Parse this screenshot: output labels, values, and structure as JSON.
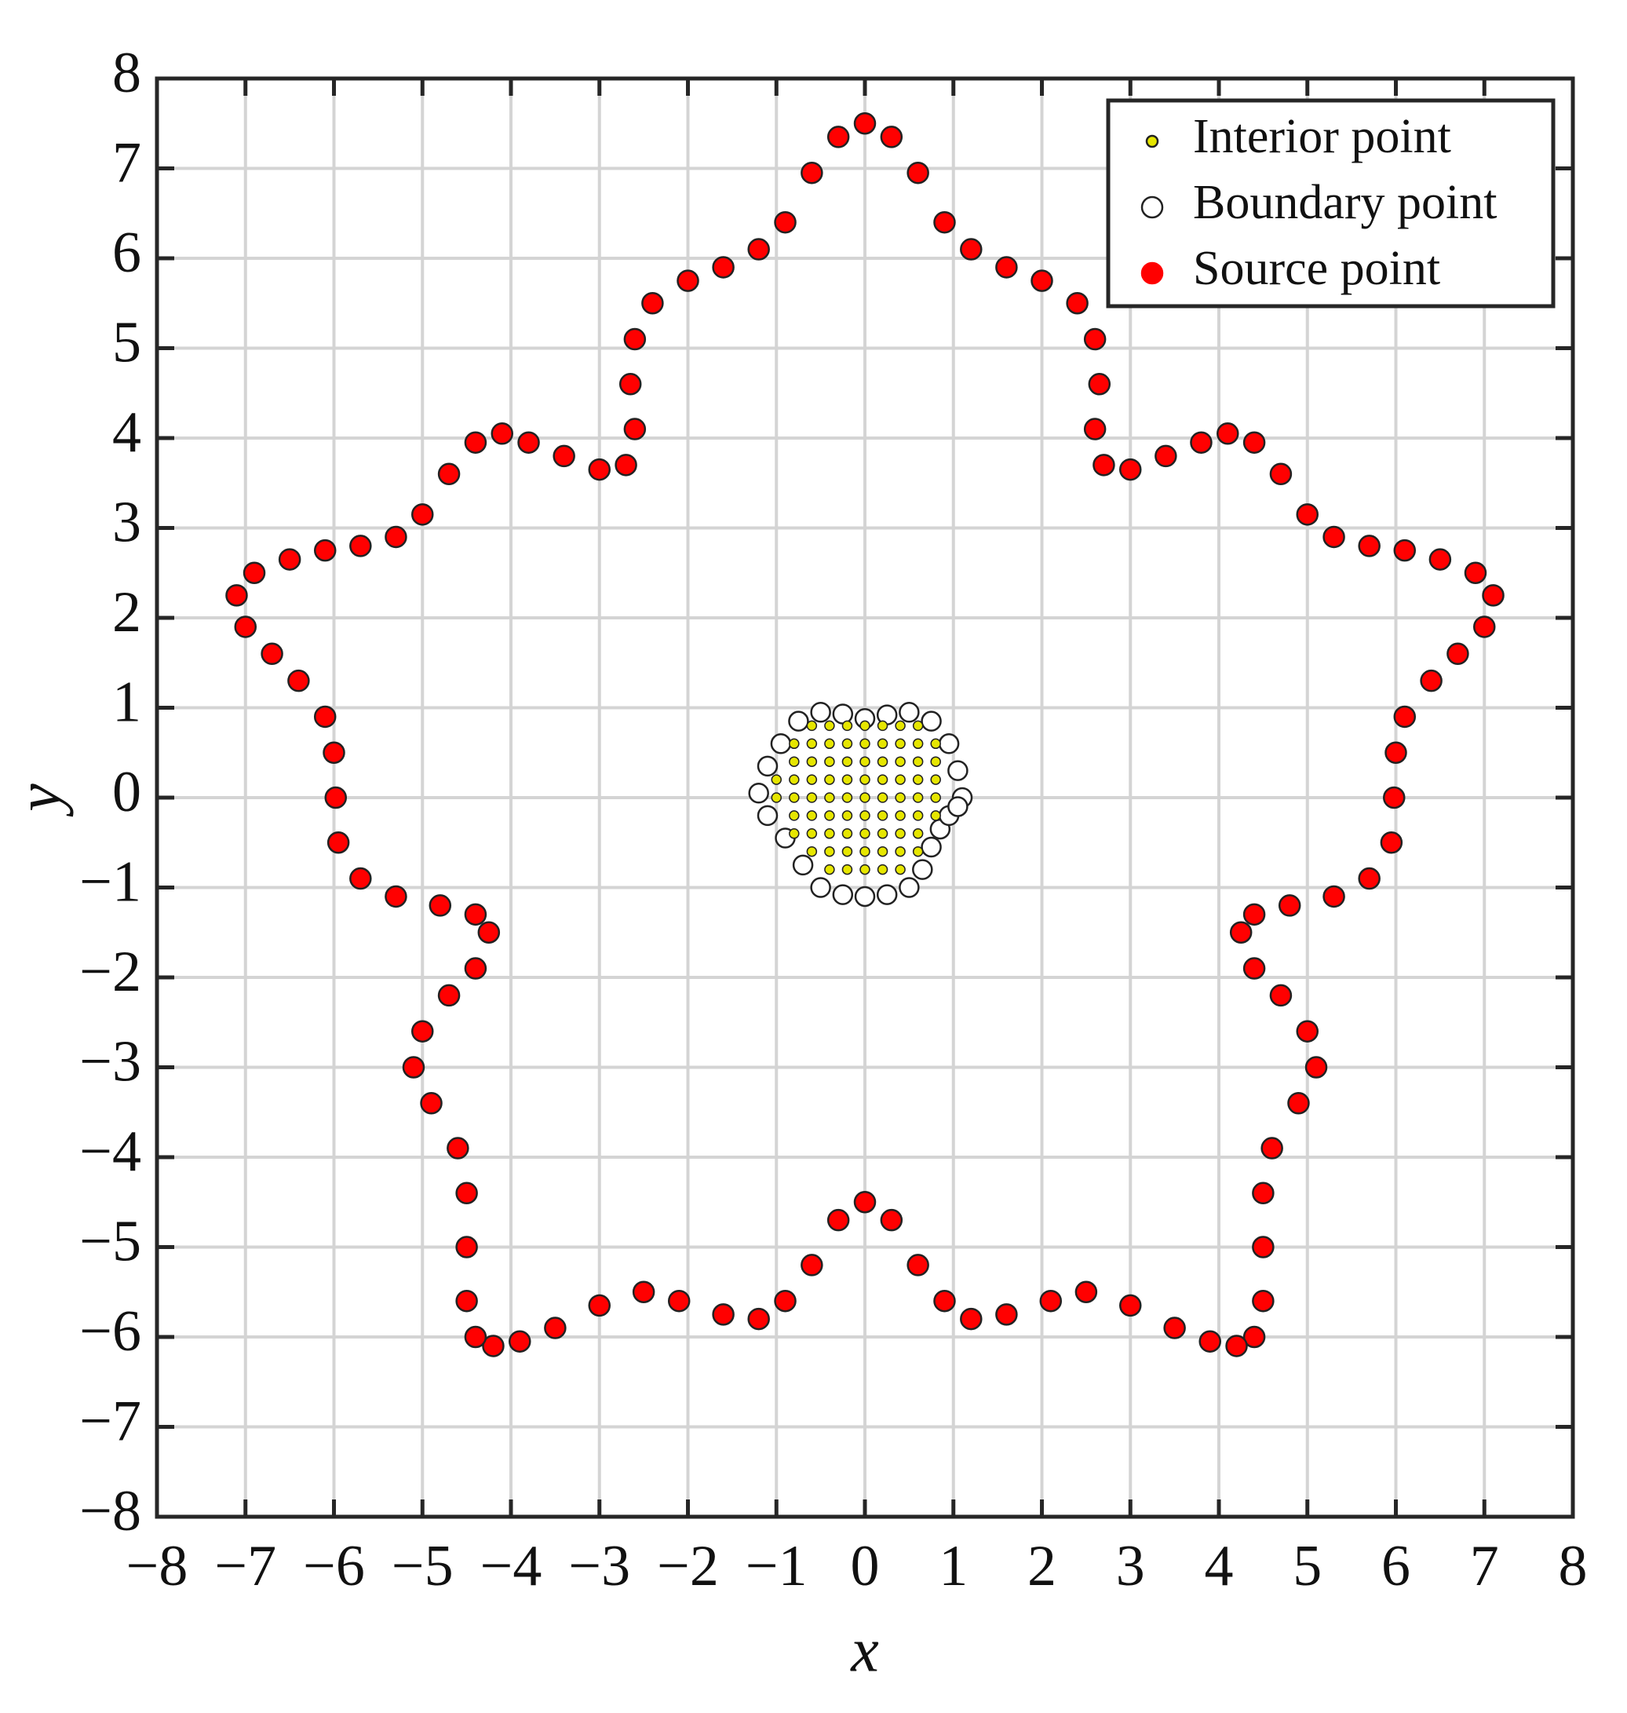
{
  "chart_data": {
    "type": "scatter",
    "x_label": "x",
    "y_label": "y",
    "xlim": [
      -8,
      8
    ],
    "ylim": [
      -8,
      8
    ],
    "xticks": [
      {
        "value": -8,
        "label": "−8"
      },
      {
        "value": -7,
        "label": "−7"
      },
      {
        "value": -6,
        "label": "−6"
      },
      {
        "value": -5,
        "label": "−5"
      },
      {
        "value": -4,
        "label": "−4"
      },
      {
        "value": -3,
        "label": "−3"
      },
      {
        "value": -2,
        "label": "−2"
      },
      {
        "value": -1,
        "label": "−1"
      },
      0,
      1,
      2,
      3,
      4,
      5,
      6,
      7,
      8
    ],
    "yticks": [
      {
        "value": -8,
        "label": "−8"
      },
      {
        "value": -7,
        "label": "−7"
      },
      {
        "value": -6,
        "label": "−6"
      },
      {
        "value": -5,
        "label": "−5"
      },
      {
        "value": -4,
        "label": "−4"
      },
      {
        "value": -3,
        "label": "−3"
      },
      {
        "value": -2,
        "label": "−2"
      },
      {
        "value": -1,
        "label": "−1"
      },
      0,
      1,
      2,
      3,
      4,
      5,
      6,
      7,
      8
    ],
    "grid": true,
    "legend": "upper right",
    "series": [
      {
        "name": "Interior point",
        "color": "#e6e600",
        "x": [
          -0.6,
          -0.4,
          -0.2,
          0,
          0.2,
          0.4,
          0.6,
          -0.8,
          -0.6,
          -0.4,
          -0.2,
          0,
          0.2,
          0.4,
          0.6,
          0.8,
          -0.8,
          -0.6,
          -0.4,
          -0.2,
          0,
          0.2,
          0.4,
          0.6,
          0.8,
          -1,
          -0.8,
          -0.6,
          -0.4,
          -0.2,
          0,
          0.2,
          0.4,
          0.6,
          0.8,
          -1,
          -0.8,
          -0.6,
          -0.4,
          -0.2,
          0,
          0.2,
          0.4,
          0.6,
          0.8,
          -0.8,
          -0.6,
          -0.4,
          -0.2,
          0,
          0.2,
          0.4,
          0.6,
          0.8,
          -0.8,
          -0.6,
          -0.4,
          -0.2,
          0,
          0.2,
          0.4,
          0.6,
          -0.6,
          -0.4,
          -0.2,
          0,
          0.2,
          0.4,
          0.6,
          -0.4,
          -0.2,
          0,
          0.2,
          0.4
        ],
        "y": [
          0.8,
          0.8,
          0.8,
          0.8,
          0.8,
          0.8,
          0.8,
          0.6,
          0.6,
          0.6,
          0.6,
          0.6,
          0.6,
          0.6,
          0.6,
          0.6,
          0.4,
          0.4,
          0.4,
          0.4,
          0.4,
          0.4,
          0.4,
          0.4,
          0.4,
          0.2,
          0.2,
          0.2,
          0.2,
          0.2,
          0.2,
          0.2,
          0.2,
          0.2,
          0.2,
          0,
          0,
          0,
          0,
          0,
          0,
          0,
          0,
          0,
          0,
          -0.2,
          -0.2,
          -0.2,
          -0.2,
          -0.2,
          -0.2,
          -0.2,
          -0.2,
          -0.2,
          -0.4,
          -0.4,
          -0.4,
          -0.4,
          -0.4,
          -0.4,
          -0.4,
          -0.4,
          -0.6,
          -0.6,
          -0.6,
          -0.6,
          -0.6,
          -0.6,
          -0.6,
          -0.8,
          -0.8,
          -0.8,
          -0.8,
          -0.8
        ]
      },
      {
        "name": "Boundary point",
        "color": "#ffffff",
        "x": [
          1.1,
          1.05,
          0.95,
          0.75,
          0.5,
          0.25,
          0,
          -0.25,
          -0.5,
          -0.75,
          -0.95,
          -1.1,
          -1.2,
          -1.1,
          -0.9,
          -0.7,
          -0.5,
          -0.25,
          0,
          0.25,
          0.5,
          0.65,
          0.75,
          0.85,
          0.95,
          1.05
        ],
        "y": [
          0,
          0.3,
          0.6,
          0.85,
          0.95,
          0.92,
          0.88,
          0.93,
          0.95,
          0.85,
          0.6,
          0.35,
          0.05,
          -0.2,
          -0.45,
          -0.75,
          -1.0,
          -1.08,
          -1.1,
          -1.08,
          -1.0,
          -0.8,
          -0.55,
          -0.35,
          -0.2,
          -0.1
        ]
      },
      {
        "name": "Source point",
        "color": "#ff0000",
        "x": [
          0,
          0.3,
          0.6,
          0.9,
          1.2,
          1.6,
          2.0,
          2.4,
          2.6,
          2.65,
          2.6,
          2.7,
          3.0,
          3.4,
          3.8,
          4.1,
          4.4,
          4.7,
          5.0,
          5.3,
          5.7,
          6.1,
          6.5,
          6.9,
          7.1,
          7.0,
          6.7,
          6.4,
          6.1,
          6.0,
          5.98,
          5.95,
          5.7,
          5.3,
          4.8,
          4.4,
          4.25,
          4.4,
          4.7,
          5.0,
          5.1,
          4.9,
          4.6,
          4.5,
          4.5,
          4.5,
          4.4,
          4.2,
          3.9,
          3.5,
          3.0,
          2.5,
          2.1,
          1.6,
          1.2,
          0.9,
          0.6,
          0.3,
          0,
          -0.3,
          -0.6,
          -0.9,
          -1.2,
          -1.6,
          -2.1,
          -2.5,
          -3.0,
          -3.5,
          -3.9,
          -4.2,
          -4.4,
          -4.5,
          -4.5,
          -4.5,
          -4.6,
          -4.9,
          -5.1,
          -5.0,
          -4.7,
          -4.4,
          -4.25,
          -4.4,
          -4.8,
          -5.3,
          -5.7,
          -5.95,
          -5.98,
          -6.0,
          -6.1,
          -6.4,
          -6.7,
          -7.0,
          -7.1,
          -6.9,
          -6.5,
          -6.1,
          -5.7,
          -5.3,
          -5.0,
          -4.7,
          -4.4,
          -4.1,
          -3.8,
          -3.4,
          -3.0,
          -2.7,
          -2.6,
          -2.65,
          -2.6,
          -2.4,
          -2.0,
          -1.6,
          -1.2,
          -0.9,
          -0.6,
          -0.3
        ],
        "y": [
          7.5,
          7.35,
          6.95,
          6.4,
          6.1,
          5.9,
          5.75,
          5.5,
          5.1,
          4.6,
          4.1,
          3.7,
          3.65,
          3.8,
          3.95,
          4.05,
          3.95,
          3.6,
          3.15,
          2.9,
          2.8,
          2.75,
          2.65,
          2.5,
          2.25,
          1.9,
          1.6,
          1.3,
          0.9,
          0.5,
          0,
          -0.5,
          -0.9,
          -1.1,
          -1.2,
          -1.3,
          -1.5,
          -1.9,
          -2.2,
          -2.6,
          -3.0,
          -3.4,
          -3.9,
          -4.4,
          -5.0,
          -5.6,
          -6.0,
          -6.1,
          -6.05,
          -5.9,
          -5.65,
          -5.5,
          -5.6,
          -5.75,
          -5.8,
          -5.6,
          -5.2,
          -4.7,
          -4.5,
          -4.7,
          -5.2,
          -5.6,
          -5.8,
          -5.75,
          -5.6,
          -5.5,
          -5.65,
          -5.9,
          -6.05,
          -6.1,
          -6.0,
          -5.6,
          -5.0,
          -4.4,
          -3.9,
          -3.4,
          -3.0,
          -2.6,
          -2.2,
          -1.9,
          -1.5,
          -1.3,
          -1.2,
          -1.1,
          -0.9,
          -0.5,
          0,
          0.5,
          0.9,
          1.3,
          1.6,
          1.9,
          2.25,
          2.5,
          2.65,
          2.75,
          2.8,
          2.9,
          3.15,
          3.6,
          3.95,
          4.05,
          3.95,
          3.8,
          3.65,
          3.7,
          4.1,
          4.6,
          5.1,
          5.5,
          5.75,
          5.9,
          6.1,
          6.4,
          6.95,
          7.35
        ]
      }
    ]
  }
}
